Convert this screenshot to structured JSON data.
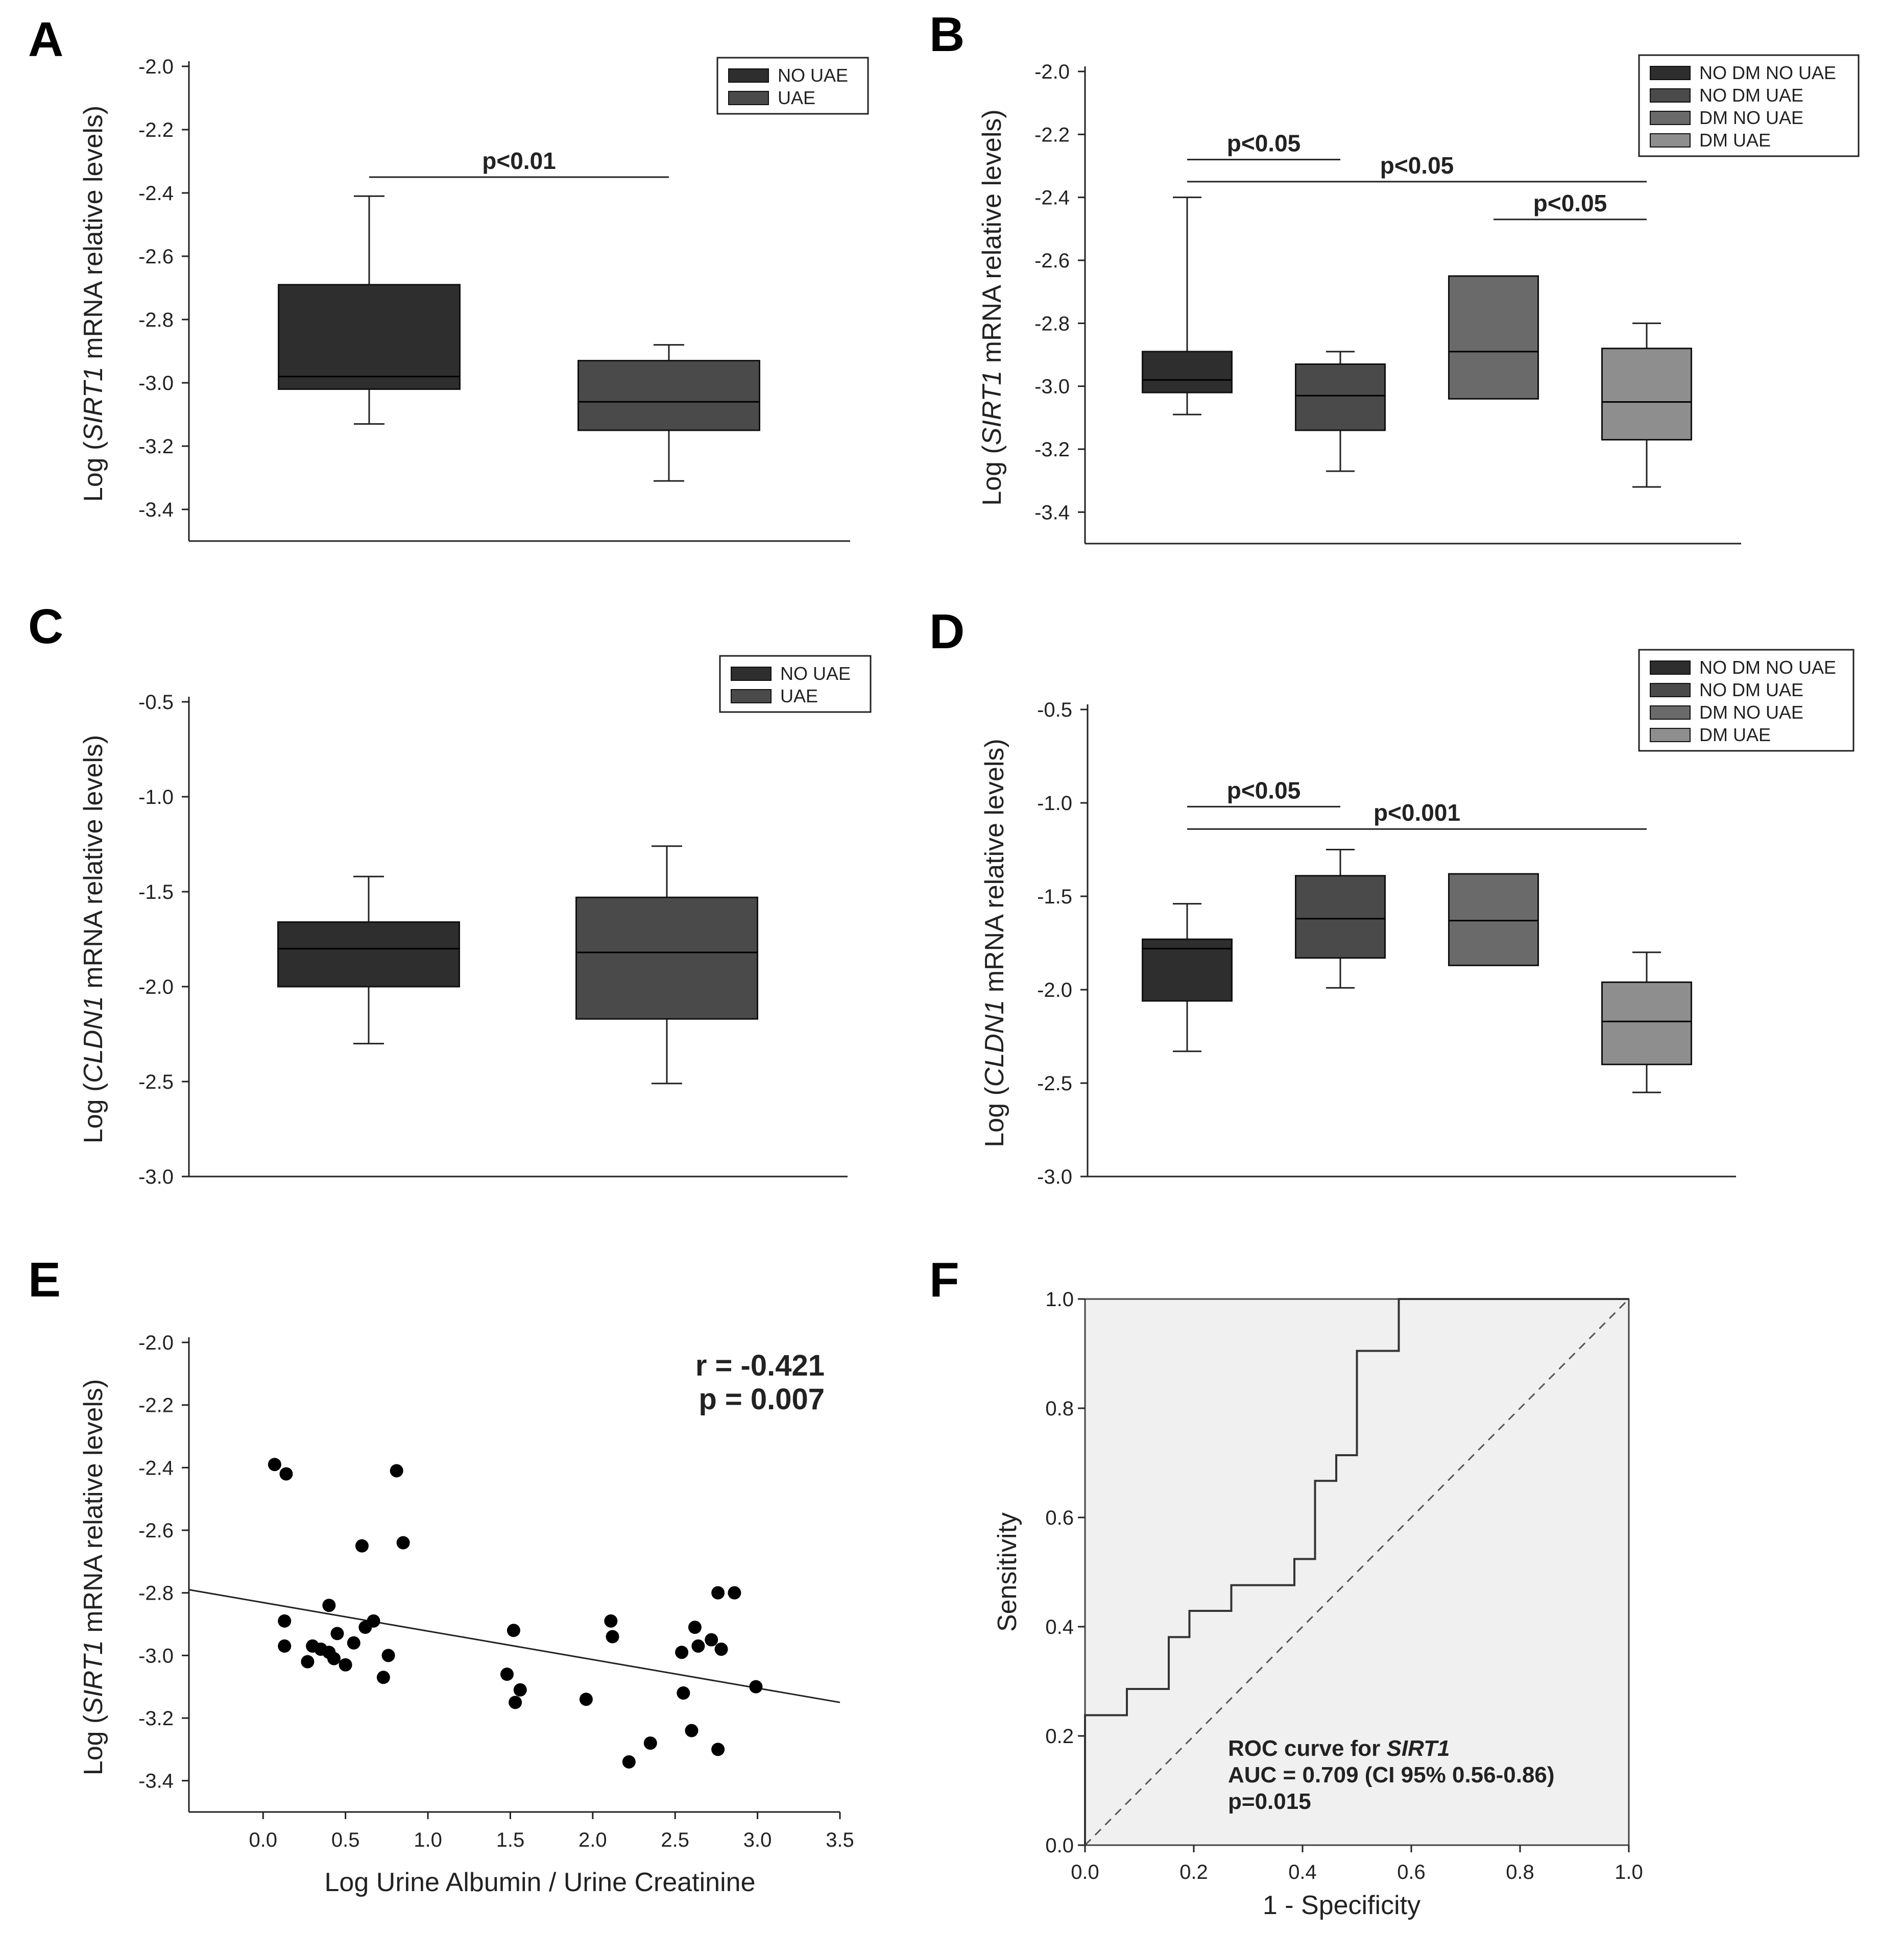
{
  "colors": {
    "c1": "#2e2e2e",
    "c2": "#4a4a4a",
    "c3": "#6a6a6a",
    "c4": "#8e8e8e",
    "roc_bg": "#f0f0f0"
  },
  "chart_data": [
    {
      "id": "A",
      "letter": "A",
      "type": "box",
      "ylabel": {
        "pre": "Log (",
        "gene": "SIRT1",
        "post": " mRNA relative levels)"
      },
      "ylim": [
        -3.5,
        -2.0
      ],
      "yticks": [
        -2.0,
        -2.2,
        -2.4,
        -2.6,
        -2.8,
        -3.0,
        -3.2,
        -3.4
      ],
      "tick_labels": [
        "-2.0",
        "-2.2",
        "-2.4",
        "-2.6",
        "-2.8",
        "-3.0",
        "-3.2",
        "-3.4"
      ],
      "legend": [
        "NO UAE",
        "UAE"
      ],
      "boxes": [
        {
          "group": "NO UAE",
          "whisker_low": -3.13,
          "q1": -3.02,
          "median": -2.98,
          "q3": -2.69,
          "whisker_high": -2.41
        },
        {
          "group": "UAE",
          "whisker_low": -3.31,
          "q1": -3.15,
          "median": -3.06,
          "q3": -2.93,
          "whisker_high": -2.88
        }
      ],
      "significance": [
        {
          "label": "p<0.01",
          "from": 0,
          "to": 1,
          "y": -2.35
        }
      ]
    },
    {
      "id": "B",
      "letter": "B",
      "type": "box",
      "ylabel": {
        "pre": "Log (",
        "gene": "SIRT1",
        "post": " mRNA relative levels)"
      },
      "ylim": [
        -3.5,
        -2.0
      ],
      "yticks": [
        -2.0,
        -2.2,
        -2.4,
        -2.6,
        -2.8,
        -3.0,
        -3.2,
        -3.4
      ],
      "tick_labels": [
        "-2.0",
        "-2.2",
        "-2.4",
        "-2.6",
        "-2.8",
        "-3.0",
        "-3.2",
        "-3.4"
      ],
      "legend": [
        "NO DM NO UAE",
        "NO DM UAE",
        "DM NO UAE",
        "DM UAE"
      ],
      "boxes": [
        {
          "group": "NO DM NO UAE",
          "whisker_low": -3.09,
          "q1": -3.02,
          "median": -2.98,
          "q3": -2.89,
          "whisker_high": -2.4
        },
        {
          "group": "NO DM UAE",
          "whisker_low": -3.27,
          "q1": -3.14,
          "median": -3.03,
          "q3": -2.93,
          "whisker_high": -2.89
        },
        {
          "group": "DM NO UAE",
          "whisker_low": null,
          "q1": -3.04,
          "median": -2.89,
          "q3": -2.65,
          "whisker_high": null
        },
        {
          "group": "DM UAE",
          "whisker_low": -3.32,
          "q1": -3.17,
          "median": -3.05,
          "q3": -2.88,
          "whisker_high": -2.8
        }
      ],
      "significance": [
        {
          "label": "p<0.05",
          "from": 0,
          "to": 1,
          "y": -2.28
        },
        {
          "label": "p<0.05",
          "from": 0,
          "to": 3,
          "y": -2.35
        },
        {
          "label": "p<0.05",
          "from": 2,
          "to": 3,
          "y": -2.47
        }
      ]
    },
    {
      "id": "C",
      "letter": "C",
      "type": "box",
      "ylabel": {
        "pre": "Log (",
        "gene": "CLDN1",
        "post": " mRNA relative levels)"
      },
      "ylim": [
        -3.0,
        -0.5
      ],
      "yticks": [
        -0.5,
        -1.0,
        -1.5,
        -2.0,
        -2.5,
        -3.0
      ],
      "tick_labels": [
        "-0.5",
        "-1.0",
        "-1.5",
        "-2.0",
        "-2.5",
        "-3.0"
      ],
      "legend": [
        "NO UAE",
        "UAE"
      ],
      "boxes": [
        {
          "group": "NO UAE",
          "whisker_low": -2.3,
          "q1": -2.0,
          "median": -1.8,
          "q3": -1.66,
          "whisker_high": -1.42
        },
        {
          "group": "UAE",
          "whisker_low": -2.51,
          "q1": -2.17,
          "median": -1.82,
          "q3": -1.53,
          "whisker_high": -1.26
        }
      ],
      "significance": []
    },
    {
      "id": "D",
      "letter": "D",
      "type": "box",
      "ylabel": {
        "pre": "Log (",
        "gene": "CLDN1",
        "post": " mRNA relative levels)"
      },
      "ylim": [
        -3.0,
        -0.5
      ],
      "yticks": [
        -0.5,
        -1.0,
        -1.5,
        -2.0,
        -2.5,
        -3.0
      ],
      "tick_labels": [
        "-0.5",
        "-1.0",
        "-1.5",
        "-2.0",
        "-2.5",
        "-3.0"
      ],
      "legend": [
        "NO DM NO UAE",
        "NO DM UAE",
        "DM NO UAE",
        "DM UAE"
      ],
      "boxes": [
        {
          "group": "NO DM NO UAE",
          "whisker_low": -2.33,
          "q1": -2.06,
          "median": -1.78,
          "q3": -1.73,
          "whisker_high": -1.54
        },
        {
          "group": "NO DM UAE",
          "whisker_low": -1.99,
          "q1": -1.83,
          "median": -1.62,
          "q3": -1.39,
          "whisker_high": -1.25
        },
        {
          "group": "DM NO UAE",
          "whisker_low": null,
          "q1": -1.87,
          "median": -1.63,
          "q3": -1.38,
          "whisker_high": null
        },
        {
          "group": "DM UAE",
          "whisker_low": -2.55,
          "q1": -2.4,
          "median": -2.17,
          "q3": -1.96,
          "whisker_high": -1.8
        }
      ],
      "significance": [
        {
          "label": "p<0.05",
          "from": 0,
          "to": 1,
          "y": -1.02
        },
        {
          "label": "p<0.001",
          "from": 0,
          "to": 3,
          "y": -1.14
        }
      ]
    },
    {
      "id": "E",
      "letter": "E",
      "type": "scatter",
      "ylabel": {
        "pre": "Log (",
        "gene": "SIRT1",
        "post": " mRNA relative levels)"
      },
      "xlabel": "Log Urine Albumin / Urine Creatinine",
      "xlim": [
        -0.45,
        3.5
      ],
      "ylim": [
        -3.5,
        -2.0
      ],
      "xticks": [
        0.0,
        0.5,
        1.0,
        1.5,
        2.0,
        2.5,
        3.0,
        3.5
      ],
      "xtick_labels": [
        "0.0",
        "0.5",
        "1.0",
        "1.5",
        "2.0",
        "2.5",
        "3.0",
        "3.5"
      ],
      "yticks": [
        -2.0,
        -2.2,
        -2.4,
        -2.6,
        -2.8,
        -3.0,
        -3.2,
        -3.4
      ],
      "ytick_labels": [
        "-2.0",
        "-2.2",
        "-2.4",
        "-2.6",
        "-2.8",
        "-3.0",
        "-3.2",
        "-3.4"
      ],
      "annotation": [
        "r = -0.421",
        "p = 0.007"
      ],
      "fit": {
        "x": [
          -0.45,
          3.5
        ],
        "y": [
          -2.79,
          -3.15
        ]
      },
      "x": [
        0.07,
        0.14,
        0.13,
        0.13,
        0.27,
        0.3,
        0.35,
        0.4,
        0.4,
        0.43,
        0.45,
        0.5,
        0.55,
        0.6,
        0.62,
        0.67,
        0.73,
        0.76,
        0.81,
        0.85,
        1.48,
        1.52,
        1.53,
        1.56,
        1.96,
        2.11,
        2.12,
        2.22,
        2.35,
        2.54,
        2.55,
        2.6,
        2.62,
        2.64,
        2.72,
        2.76,
        2.78,
        2.86,
        2.99,
        2.76
      ],
      "y": [
        -2.39,
        -2.42,
        -2.89,
        -2.97,
        -3.02,
        -2.97,
        -2.98,
        -2.99,
        -2.84,
        -3.01,
        -2.93,
        -3.03,
        -2.96,
        -2.65,
        -2.91,
        -2.89,
        -3.07,
        -3.0,
        -2.41,
        -2.64,
        -3.06,
        -2.92,
        -3.15,
        -3.11,
        -3.14,
        -2.89,
        -2.94,
        -3.34,
        -3.28,
        -2.99,
        -3.12,
        -3.24,
        -2.91,
        -2.97,
        -2.95,
        -2.8,
        -2.98,
        -2.8,
        -3.1,
        -3.3
      ]
    },
    {
      "id": "F",
      "letter": "F",
      "type": "line",
      "ylabel": "Sensitivity",
      "xlabel": "1 - Specificity",
      "xlim": [
        0.0,
        1.0
      ],
      "ylim": [
        0.0,
        1.0
      ],
      "xticks": [
        0.0,
        0.2,
        0.4,
        0.6,
        0.8,
        1.0
      ],
      "xtick_labels": [
        "0.0",
        "0.2",
        "0.4",
        "0.6",
        "0.8",
        "1.0"
      ],
      "yticks": [
        0.0,
        0.2,
        0.4,
        0.6,
        0.8,
        1.0
      ],
      "ytick_labels": [
        "0.0",
        "0.2",
        "0.4",
        "0.6",
        "0.8",
        "1.0"
      ],
      "roc": {
        "x": [
          0.0,
          0.0,
          0.077,
          0.077,
          0.154,
          0.154,
          0.192,
          0.192,
          0.269,
          0.269,
          0.385,
          0.385,
          0.423,
          0.423,
          0.462,
          0.462,
          0.5,
          0.5,
          0.577,
          0.577,
          1.0
        ],
        "y": [
          0.0,
          0.238,
          0.238,
          0.286,
          0.286,
          0.381,
          0.381,
          0.429,
          0.429,
          0.476,
          0.476,
          0.524,
          0.524,
          0.667,
          0.667,
          0.714,
          0.714,
          0.905,
          0.905,
          1.0,
          1.0
        ]
      },
      "reference_line": {
        "x": [
          0.0,
          1.0
        ],
        "y": [
          0.0,
          1.0
        ]
      },
      "note": {
        "title_pre": "ROC curve for ",
        "title_gene": "SIRT1",
        "auc": "AUC = 0.709 (CI 95% 0.56-0.86)",
        "p": "p=0.015"
      }
    }
  ]
}
